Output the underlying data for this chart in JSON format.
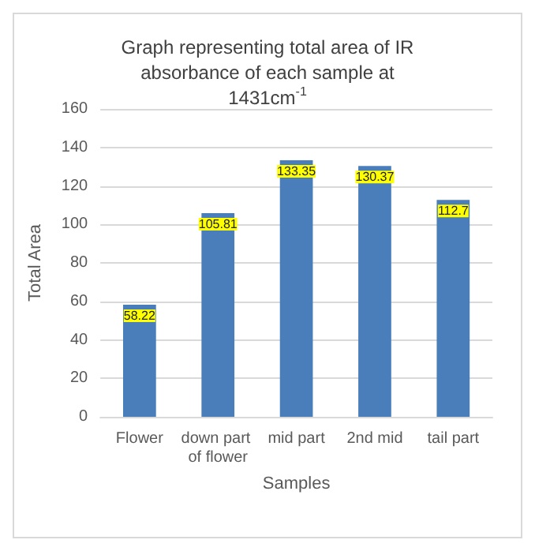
{
  "chart_data": {
    "type": "bar",
    "title": "Graph representing total area of IR absorbance of each sample at 1431cm$^{-1}$",
    "xlabel": "Samples",
    "ylabel": "Total Area",
    "categories": [
      "Flower",
      "down part of flower",
      "mid part",
      "2nd mid",
      "tail part"
    ],
    "values": [
      58.22,
      105.81,
      133.35,
      130.37,
      112.7
    ],
    "color": "#4a7ebb",
    "ylim": [
      0,
      160
    ],
    "yticks": [
      0,
      20,
      40,
      60,
      80,
      100,
      120,
      140,
      160
    ],
    "grid": "y",
    "data_labels": true
  }
}
